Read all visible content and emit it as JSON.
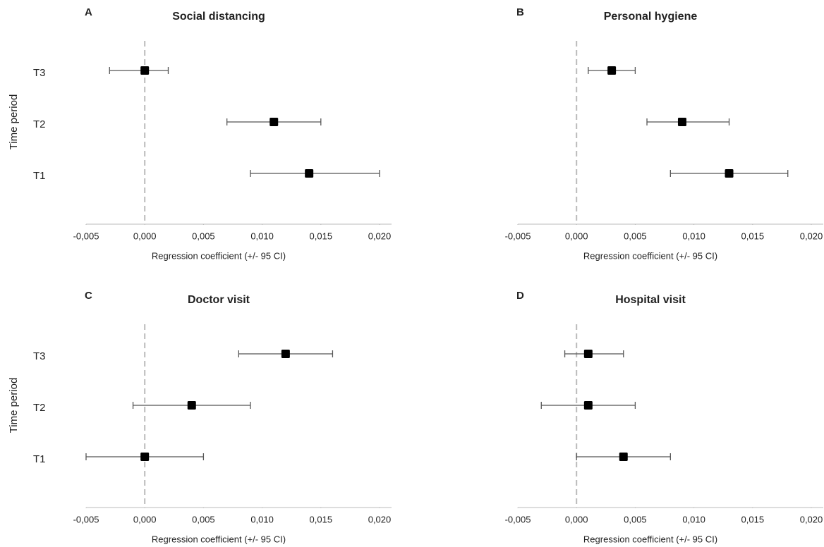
{
  "chart_data": [
    {
      "type": "errorbar",
      "panel": "A",
      "title": "Social distancing",
      "ylabel": "Time period",
      "xlabel": "Regression coefficient (+/- 95 CI)",
      "categories": [
        "T3",
        "T2",
        "T1"
      ],
      "values": [
        0,
        0.011,
        0.014
      ],
      "lower": [
        -0.003,
        0.007,
        0.009
      ],
      "upper": [
        0.002,
        0.015,
        0.02
      ],
      "xlim": [
        -0.005,
        0.02
      ],
      "xticks": [
        {
          "value": -0.005,
          "label": "-0,005"
        },
        {
          "value": 0,
          "label": "0,000"
        },
        {
          "value": 0.005,
          "label": "0,005"
        },
        {
          "value": 0.01,
          "label": "0,010"
        },
        {
          "value": 0.015,
          "label": "0,015"
        },
        {
          "value": 0.02,
          "label": "0,020"
        }
      ],
      "reference_x": 0,
      "color": "#000000"
    },
    {
      "type": "errorbar",
      "panel": "B",
      "title": "Personal hygiene",
      "xlabel": "Regression coefficient (+/- 95 CI)",
      "categories": [
        null,
        null,
        null
      ],
      "values": [
        0.003,
        0.009,
        0.013
      ],
      "lower": [
        0.001,
        0.006,
        0.008
      ],
      "upper": [
        0.005,
        0.013,
        0.018
      ],
      "xlim": [
        -0.005,
        0.02
      ],
      "xticks": [
        {
          "value": -0.005,
          "label": "-0,005"
        },
        {
          "value": 0,
          "label": "0,000"
        },
        {
          "value": 0.005,
          "label": "0,005"
        },
        {
          "value": 0.01,
          "label": "0,010"
        },
        {
          "value": 0.015,
          "label": "0,015"
        },
        {
          "value": 0.02,
          "label": "0,020"
        }
      ],
      "reference_x": 0,
      "color": "#000000"
    },
    {
      "type": "errorbar",
      "panel": "C",
      "title": "Doctor visit",
      "ylabel": "Time period",
      "xlabel": "Regression coefficient (+/- 95 CI)",
      "categories": [
        "T3",
        "T2",
        "T1"
      ],
      "values": [
        0.012,
        0.004,
        0
      ],
      "lower": [
        0.008,
        -0.001,
        -0.005
      ],
      "upper": [
        0.016,
        0.009,
        0.005
      ],
      "xlim": [
        -0.005,
        0.02
      ],
      "xticks": [
        {
          "value": -0.005,
          "label": "-0,005"
        },
        {
          "value": 0,
          "label": "0,000"
        },
        {
          "value": 0.005,
          "label": "0,005"
        },
        {
          "value": 0.01,
          "label": "0,010"
        },
        {
          "value": 0.015,
          "label": "0,015"
        },
        {
          "value": 0.02,
          "label": "0,020"
        }
      ],
      "reference_x": 0,
      "color": "#000000"
    },
    {
      "type": "errorbar",
      "panel": "D",
      "title": "Hospital visit",
      "xlabel": "Regression coefficient (+/- 95 CI)",
      "categories": [
        null,
        null,
        null
      ],
      "values": [
        0.001,
        0.001,
        0.004
      ],
      "lower": [
        -0.001,
        -0.003,
        0
      ],
      "upper": [
        0.004,
        0.005,
        0.008
      ],
      "xlim": [
        -0.005,
        0.02
      ],
      "xticks": [
        {
          "value": -0.005,
          "label": "-0,005"
        },
        {
          "value": 0,
          "label": "0,000"
        },
        {
          "value": 0.005,
          "label": "0,005"
        },
        {
          "value": 0.01,
          "label": "0,010"
        },
        {
          "value": 0.015,
          "label": "0,015"
        },
        {
          "value": 0.02,
          "label": "0,020"
        }
      ],
      "reference_x": 0,
      "color": "#000000"
    }
  ]
}
